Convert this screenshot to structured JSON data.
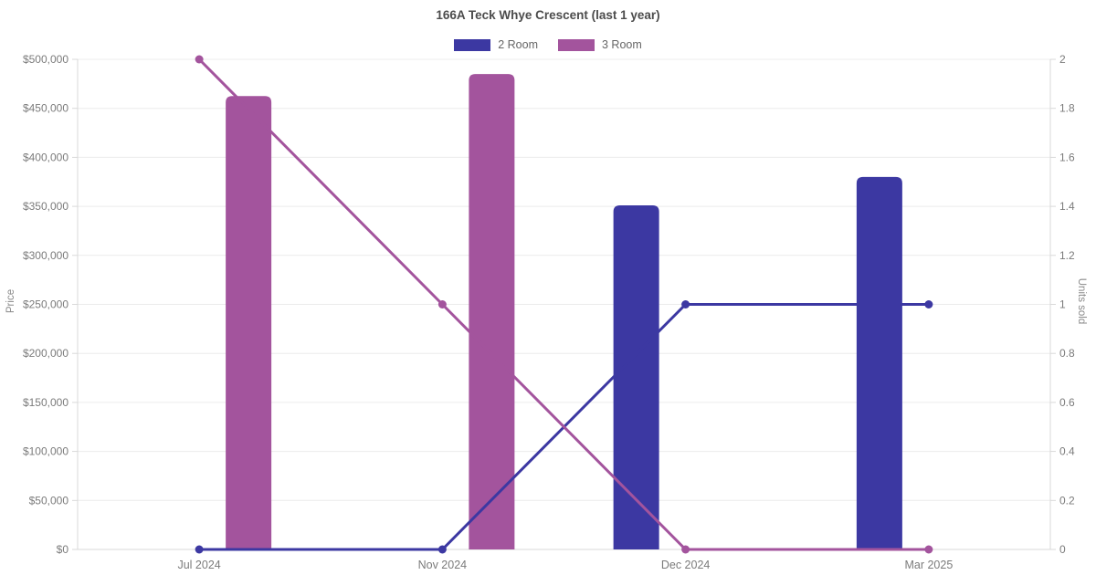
{
  "chart_data": {
    "type": "bar+line",
    "title": "166A Teck Whye Crescent (last 1 year)",
    "categories": [
      "Jul 2024",
      "Nov 2024",
      "Dec 2024",
      "Mar 2025"
    ],
    "left_axis": {
      "label": "Price",
      "min": 0,
      "max": 500000,
      "step": 50000,
      "tick_format": "$#,###"
    },
    "right_axis": {
      "label": "Units sold",
      "min": 0,
      "max": 2,
      "step": 0.2
    },
    "legend": [
      {
        "label": "2 Room",
        "color": "#3c38a2"
      },
      {
        "label": "3 Room",
        "color": "#a3549d"
      }
    ],
    "bar_series": [
      {
        "name": "2 Room",
        "axis": "left",
        "color": "#3c38a2",
        "values": [
          null,
          null,
          351000,
          380000
        ]
      },
      {
        "name": "3 Room",
        "axis": "left",
        "color": "#a3549d",
        "values": [
          462500,
          485000,
          null,
          null
        ]
      }
    ],
    "line_series": [
      {
        "name": "2 Room",
        "axis": "right",
        "color": "#3c38a2",
        "values": [
          0,
          0,
          1,
          1
        ]
      },
      {
        "name": "3 Room",
        "axis": "right",
        "color": "#a3549d",
        "values": [
          2,
          1,
          0,
          0
        ]
      }
    ],
    "grid": "horizontal-only",
    "legend_position": "top",
    "colors": {
      "grid": "#ececec",
      "axis_border": "#d9d9d9",
      "tick_text": "#7b7b7b",
      "title_text": "#4c4c4c"
    }
  }
}
